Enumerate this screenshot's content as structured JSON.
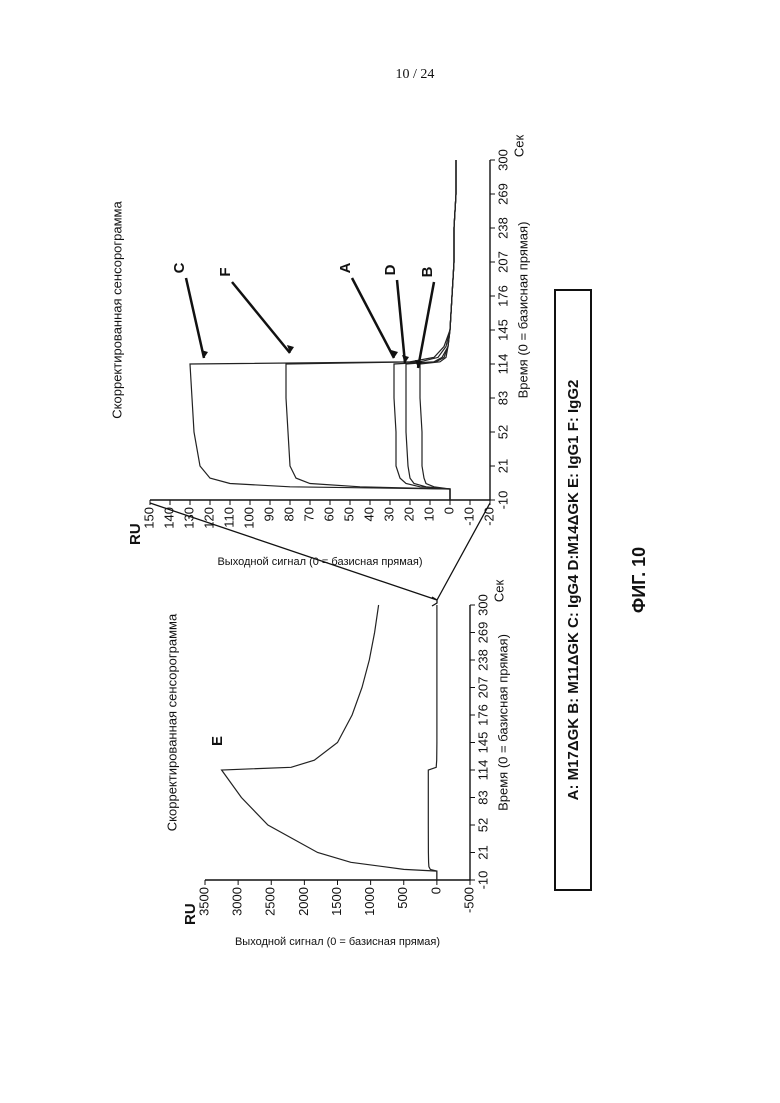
{
  "page_number": "10 / 24",
  "figure_label": "ФИГ. 10",
  "legend_text": "A: M17ΔGK  B: M11ΔGK  C: IgG4  D:M14ΔGK  E: IgG1  F: IgG2",
  "chart_data": [
    {
      "type": "line",
      "title": "Скорректированная сенсорограмма",
      "x_label": "Время (0 = базисная прямая)",
      "x_unit": "Сек",
      "y_label": "Выходной сигнал (0 = базисная прямая)",
      "y_unit": "RU",
      "xlim": [
        -10,
        300
      ],
      "xticks": [
        -10,
        21,
        52,
        83,
        114,
        145,
        176,
        207,
        238,
        269,
        300
      ],
      "ylim": [
        -500,
        3500
      ],
      "yticks": [
        -500,
        0,
        500,
        1000,
        1500,
        2000,
        2500,
        3000,
        3500
      ],
      "x": [
        -10,
        0,
        2,
        5,
        10,
        21,
        52,
        83,
        114,
        117,
        125,
        145,
        176,
        207,
        238,
        269,
        300
      ],
      "series": [
        {
          "name": "E",
          "color": "#222222",
          "values": [
            0,
            0,
            500,
            800,
            1300,
            1800,
            2550,
            2950,
            3250,
            2200,
            1850,
            1500,
            1280,
            1130,
            1020,
            940,
            880
          ]
        },
        {
          "color": "#222222",
          "values": [
            0,
            0,
            100,
            120,
            125,
            128,
            129,
            130,
            130,
            10,
            3,
            0,
            0,
            0,
            0,
            0,
            0
          ]
        }
      ]
    },
    {
      "type": "line",
      "title": "Скорректированная сенсорограмма",
      "x_label": "Время (0 = базисная прямая)",
      "x_unit": "Сек",
      "y_label": "Выходной сигнал (0 = базисная прямая)",
      "y_unit": "RU",
      "xlim": [
        -10,
        300
      ],
      "xticks": [
        -10,
        21,
        52,
        83,
        114,
        145,
        176,
        207,
        238,
        269,
        300
      ],
      "ylim": [
        -20,
        150
      ],
      "yticks": [
        -20,
        -10,
        0,
        10,
        20,
        30,
        40,
        50,
        60,
        70,
        80,
        90,
        100,
        110,
        120,
        130,
        140,
        150
      ],
      "x": [
        -10,
        -1,
        0,
        2,
        5,
        10,
        21,
        52,
        83,
        114,
        116,
        120,
        130,
        145,
        176,
        207,
        238,
        269,
        300
      ],
      "series": [
        {
          "name": "C",
          "color": "#222222",
          "values": [
            0,
            0,
            0,
            80,
            110,
            120,
            125,
            128,
            129,
            130,
            20,
            8,
            3,
            0,
            -1,
            -2,
            -2,
            -3,
            -3
          ]
        },
        {
          "name": "F",
          "color": "#222222",
          "values": [
            0,
            0,
            0,
            45,
            70,
            77,
            80,
            81,
            82,
            82,
            15,
            6,
            2,
            0,
            -1,
            -2,
            -2,
            -3,
            -3
          ]
        },
        {
          "name": "A",
          "color": "#222222",
          "values": [
            0,
            0,
            0,
            15,
            22,
            25,
            27,
            27,
            28,
            28,
            8,
            4,
            1,
            0,
            -1,
            -2,
            -2,
            -3,
            -3
          ]
        },
        {
          "name": "D",
          "color": "#222222",
          "values": [
            0,
            0,
            0,
            12,
            18,
            20,
            21,
            22,
            22,
            22,
            7,
            3,
            1,
            0,
            -1,
            -2,
            -2,
            -3,
            -3
          ]
        },
        {
          "name": "B",
          "color": "#222222",
          "values": [
            0,
            0,
            0,
            8,
            12,
            13,
            14,
            14,
            15,
            15,
            5,
            2,
            1,
            0,
            -1,
            -2,
            -2,
            -3,
            -3
          ]
        }
      ]
    }
  ]
}
